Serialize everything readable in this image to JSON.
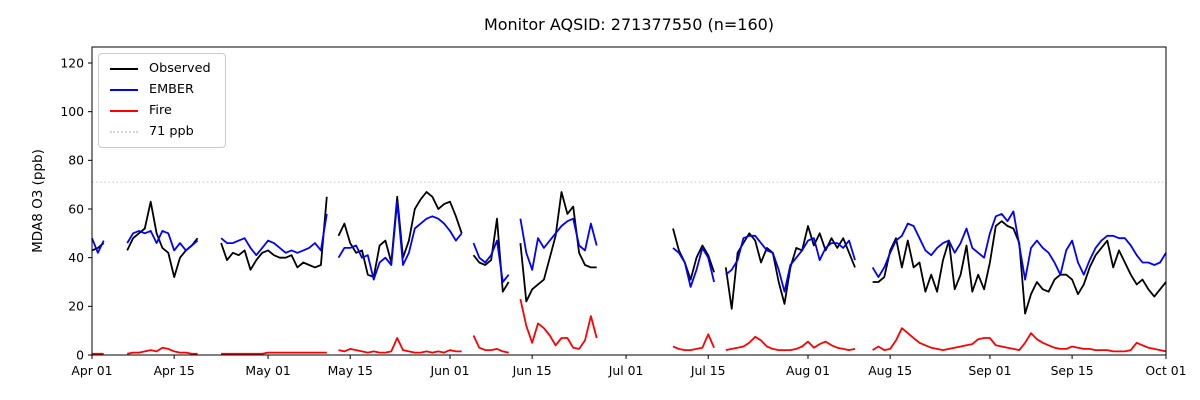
{
  "figure": {
    "background": "#ffffff"
  },
  "chart_data": {
    "type": "line",
    "title": "Monitor AQSID: 271377550 (n=160)",
    "ylabel": "MDA8 O3 (ppb)",
    "xlabel": "",
    "n_points": 160,
    "grid": false,
    "legend_position": "upper-left",
    "ylim": [
      0,
      126
    ],
    "yticks": [
      0,
      20,
      40,
      60,
      80,
      100,
      120
    ],
    "x_range_days": 183,
    "x_tick_labels": [
      "Apr 01",
      "Apr 15",
      "May 01",
      "May 15",
      "Jun 01",
      "Jun 15",
      "Jul 01",
      "Jul 15",
      "Aug 01",
      "Aug 15",
      "Sep 01",
      "Sep 15",
      "Oct 01"
    ],
    "x_tick_days": [
      0,
      14,
      30,
      44,
      61,
      75,
      91,
      105,
      122,
      136,
      153,
      167,
      183
    ],
    "threshold": {
      "value": 71,
      "label": "71 ppb",
      "color": "#d3d3d3",
      "line_style": "dotted"
    },
    "series": [
      {
        "name": "Observed",
        "color": "#000000",
        "values": [
          43,
          44,
          46,
          null,
          null,
          null,
          43,
          48,
          50,
          52,
          63,
          50,
          44,
          42,
          32,
          40,
          43,
          45,
          48,
          null,
          null,
          null,
          46,
          39,
          42,
          41,
          43,
          35,
          39,
          42,
          43,
          41,
          40,
          40,
          41,
          36,
          38,
          37,
          36,
          37,
          65,
          null,
          49,
          54,
          46,
          42,
          43,
          33,
          32,
          45,
          47,
          38,
          65,
          40,
          47,
          60,
          64,
          67,
          65,
          60,
          62,
          63,
          57,
          50,
          null,
          41,
          38,
          37,
          39,
          56,
          26,
          30,
          null,
          46,
          22,
          27,
          29,
          31,
          40,
          49,
          67,
          58,
          61,
          42,
          37,
          36,
          36,
          null,
          null,
          null,
          null,
          null,
          null,
          null,
          null,
          null,
          null,
          null,
          null,
          52,
          43,
          38,
          31,
          40,
          45,
          41,
          34,
          null,
          36,
          19,
          42,
          46,
          50,
          47,
          38,
          44,
          42,
          30,
          21,
          36,
          44,
          43,
          53,
          45,
          50,
          43,
          48,
          44,
          48,
          42,
          36,
          null,
          null,
          30,
          30,
          32,
          43,
          48,
          36,
          47,
          36,
          38,
          26,
          33,
          26,
          39,
          47,
          27,
          33,
          45,
          26,
          33,
          27,
          38,
          53,
          55,
          53,
          52,
          46,
          17,
          25,
          30,
          27,
          26,
          31,
          33,
          33,
          31,
          25,
          29,
          36,
          41,
          44,
          47,
          36,
          43,
          38,
          33,
          29,
          31,
          27,
          24,
          27,
          30
        ]
      },
      {
        "name": "EMBER",
        "color": "#0000ff",
        "values": [
          48,
          42,
          47,
          null,
          null,
          null,
          46,
          50,
          51,
          50,
          51,
          46,
          51,
          50,
          43,
          46,
          43,
          45,
          47,
          null,
          null,
          null,
          48,
          46,
          46,
          47,
          48,
          44,
          41,
          44,
          47,
          46,
          44,
          42,
          43,
          42,
          43,
          44,
          46,
          43,
          58,
          null,
          40,
          44,
          44,
          45,
          40,
          41,
          31,
          38,
          40,
          37,
          63,
          37,
          42,
          52,
          54,
          56,
          57,
          56,
          54,
          51,
          47,
          50,
          null,
          46,
          40,
          38,
          41,
          47,
          30,
          33,
          null,
          56,
          42,
          35,
          48,
          44,
          47,
          50,
          53,
          55,
          56,
          45,
          43,
          54,
          45,
          null,
          null,
          null,
          null,
          null,
          null,
          null,
          null,
          null,
          null,
          null,
          null,
          44,
          42,
          38,
          28,
          35,
          44,
          40,
          30,
          null,
          33,
          35,
          39,
          48,
          49,
          49,
          46,
          43,
          42,
          35,
          26,
          37,
          40,
          43,
          47,
          48,
          39,
          44,
          46,
          46,
          44,
          47,
          39,
          null,
          null,
          36,
          32,
          36,
          42,
          47,
          49,
          54,
          53,
          48,
          43,
          41,
          44,
          46,
          47,
          42,
          46,
          52,
          44,
          42,
          40,
          50,
          57,
          58,
          55,
          59,
          45,
          31,
          44,
          47,
          44,
          42,
          38,
          33,
          43,
          47,
          38,
          33,
          39,
          44,
          47,
          49,
          49,
          48,
          48,
          45,
          41,
          38,
          38,
          37,
          38,
          42
        ]
      },
      {
        "name": "Fire",
        "color": "#ff0000",
        "values": [
          0.5,
          0.5,
          0.5,
          null,
          null,
          null,
          0.5,
          1,
          1,
          1.5,
          2,
          1.5,
          3,
          2.5,
          1.5,
          1,
          1,
          0.5,
          0.5,
          null,
          null,
          null,
          0.5,
          0.5,
          0.5,
          0.5,
          0.5,
          0.5,
          0.5,
          0.5,
          1,
          1,
          1,
          1,
          1,
          1,
          1,
          1,
          1,
          1,
          1,
          null,
          2,
          1.5,
          2.5,
          2,
          1.5,
          1,
          1.5,
          1,
          1,
          1.5,
          7,
          2,
          1.5,
          1,
          1,
          1.5,
          1,
          1.5,
          1,
          2,
          1.5,
          1.5,
          null,
          8,
          3,
          2,
          2,
          2.5,
          1.5,
          1,
          null,
          23,
          12,
          5,
          13,
          11,
          8,
          4,
          7,
          7,
          3,
          2.5,
          6,
          16,
          7,
          null,
          null,
          null,
          null,
          null,
          null,
          null,
          null,
          null,
          null,
          null,
          null,
          3.5,
          2.5,
          2,
          2,
          2.5,
          3,
          8.5,
          3,
          null,
          2,
          2.5,
          3,
          3.5,
          5,
          7.5,
          6,
          3.5,
          2.5,
          2,
          2,
          2,
          2.5,
          3.5,
          5.5,
          3,
          4.5,
          5.5,
          4,
          3,
          2.5,
          2,
          2.5,
          null,
          null,
          2,
          3.5,
          2,
          2.5,
          6,
          11,
          9,
          7,
          5,
          4,
          3,
          2.5,
          2,
          2.5,
          3,
          3.5,
          4,
          4.5,
          6.5,
          7,
          7,
          4,
          3.5,
          3,
          2.5,
          2,
          5,
          9,
          6.5,
          5,
          4,
          3,
          2.5,
          2.5,
          3.5,
          3,
          2.5,
          2.5,
          2,
          2,
          2,
          1.5,
          1.5,
          1.5,
          2,
          5,
          4,
          3,
          2.5,
          2,
          1.5
        ]
      }
    ]
  }
}
